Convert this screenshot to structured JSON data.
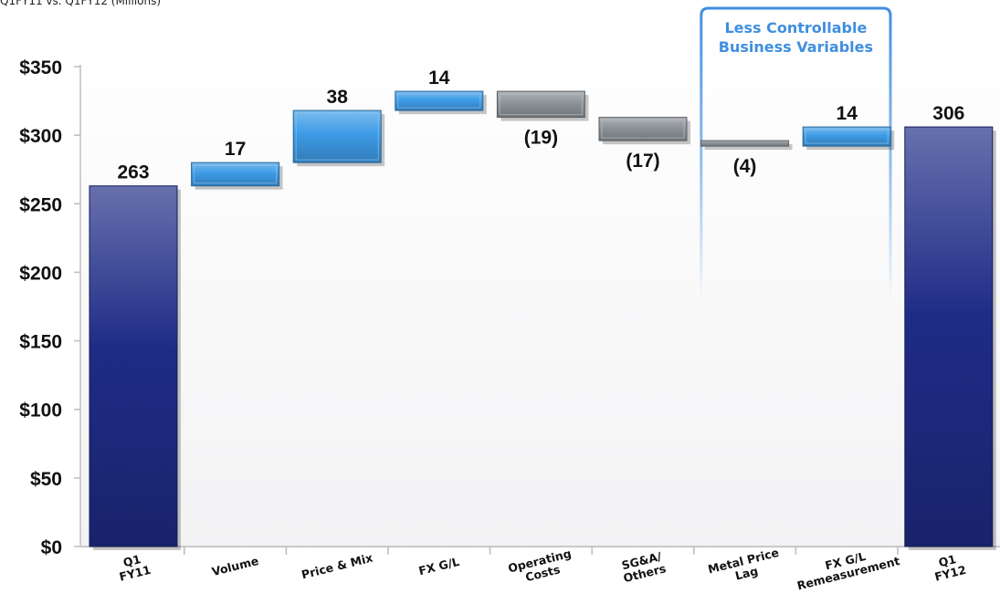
{
  "subtitle": "Q1FY11 vs. Q1FY12 (Millions)",
  "chart_data": {
    "type": "waterfall",
    "title": "",
    "xlabel": "",
    "ylabel": "",
    "ylim": [
      0,
      350
    ],
    "y_ticks": [
      "$0",
      "$50",
      "$100",
      "$150",
      "$200",
      "$250",
      "$300",
      "$350"
    ],
    "y_tick_values": [
      0,
      50,
      100,
      150,
      200,
      250,
      300,
      350
    ],
    "grid": false,
    "categories": [
      [
        "Q1",
        "FY11"
      ],
      [
        "Volume"
      ],
      [
        "Price & Mix"
      ],
      [
        "FX G/L"
      ],
      [
        "Operating",
        "Costs"
      ],
      [
        "SG&A/",
        "Others"
      ],
      [
        "Metal Price",
        "Lag"
      ],
      [
        "FX G/L",
        "Remeasurement"
      ],
      [
        "Q1",
        "FY12"
      ]
    ],
    "values": [
      263,
      17,
      38,
      14,
      -19,
      -17,
      -4,
      14,
      306
    ],
    "bar_kinds": [
      "total",
      "increase",
      "increase",
      "increase",
      "decrease",
      "decrease",
      "decrease",
      "increase",
      "total"
    ],
    "data_labels": [
      "263",
      "17",
      "38",
      "14",
      "(19)",
      "(17)",
      "(4)",
      "14",
      "306"
    ],
    "colors": {
      "total": "#1f2c86",
      "increase": "#3d9be6",
      "decrease": "#8c9297"
    },
    "annotation": {
      "text_lines": [
        "Less Controllable",
        "Business Variables"
      ],
      "spans_categories": [
        6,
        7
      ],
      "color": "#3f8fe0"
    }
  }
}
